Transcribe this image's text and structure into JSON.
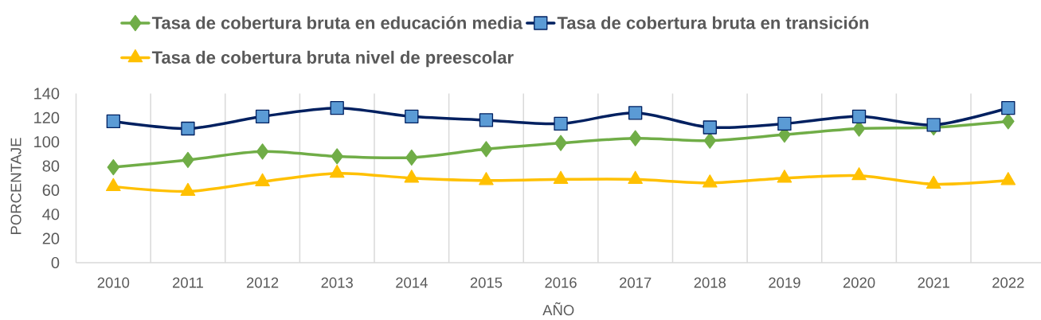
{
  "chart_data": {
    "type": "line",
    "xlabel": "AÑO",
    "ylabel": "PORCENTAJE",
    "categories": [
      "2010",
      "2011",
      "2012",
      "2013",
      "2014",
      "2015",
      "2016",
      "2017",
      "2018",
      "2019",
      "2020",
      "2021",
      "2022"
    ],
    "series": [
      {
        "name": "Tasa de cobertura bruta en educación media",
        "color": "#70ad47",
        "marker": "diamond",
        "values": [
          79,
          85,
          92,
          88,
          87,
          94,
          99,
          103,
          101,
          106,
          111,
          112,
          117
        ]
      },
      {
        "name": "Tasa de cobertura bruta en transición",
        "color": "#002060",
        "marker": "square",
        "values": [
          117,
          111,
          121,
          128,
          121,
          118,
          115,
          124,
          112,
          115,
          121,
          114,
          128
        ]
      },
      {
        "name": "Tasa de cobertura bruta nivel de preescolar",
        "color": "#ffc000",
        "marker": "triangle",
        "values": [
          63,
          59,
          67,
          74,
          70,
          68,
          69,
          69,
          66,
          70,
          72,
          65,
          68
        ]
      }
    ],
    "ylim": [
      0,
      140
    ],
    "yticks": [
      0,
      20,
      40,
      60,
      80,
      100,
      120,
      140
    ],
    "grid": "x",
    "legend": "top"
  }
}
